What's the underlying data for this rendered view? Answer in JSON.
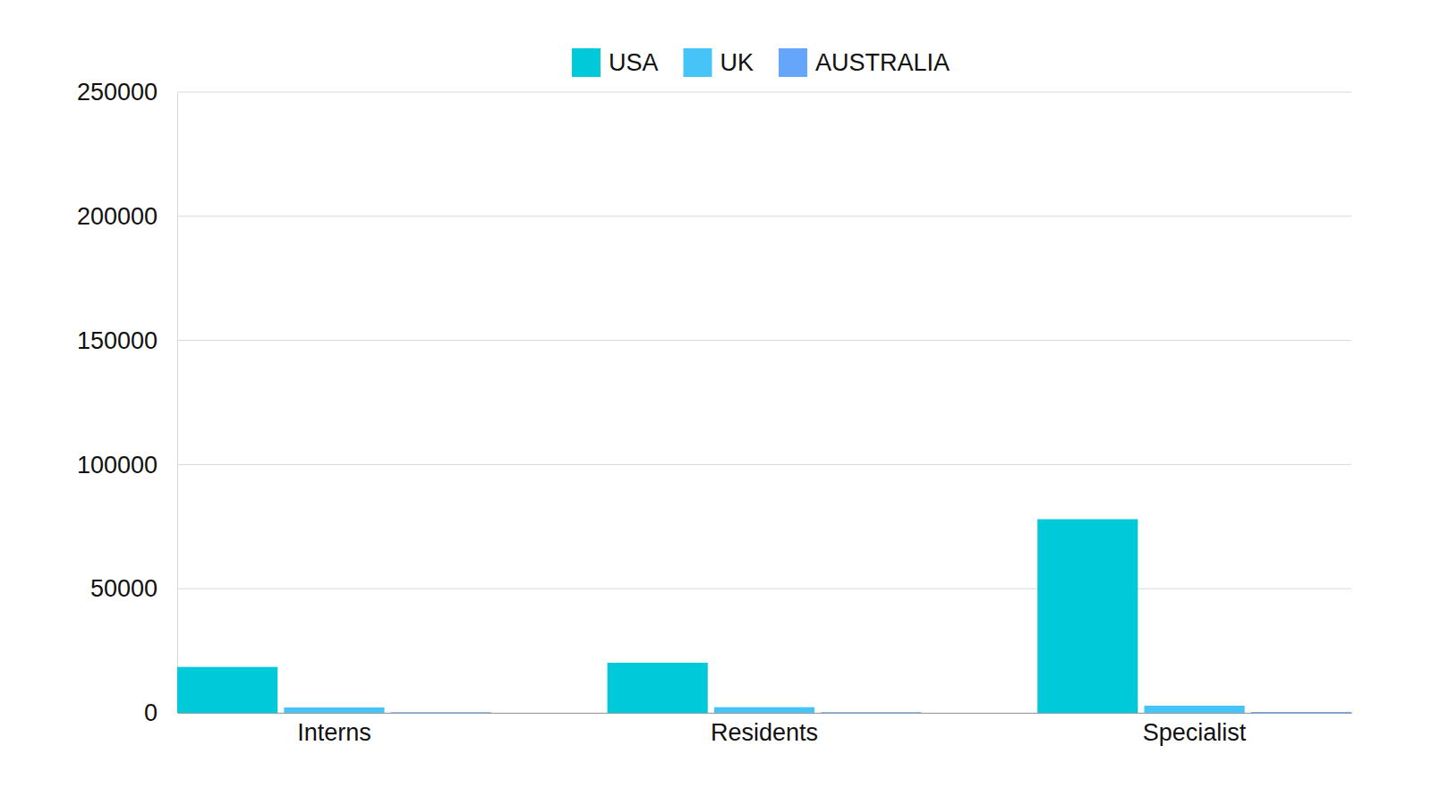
{
  "chart_data": {
    "type": "bar",
    "categories": [
      "Interns",
      "Residents",
      "Specialist"
    ],
    "series": [
      {
        "name": "USA",
        "color": "#00c9d9",
        "values": [
          18500,
          20200,
          78000
        ]
      },
      {
        "name": "UK",
        "color": "#47c4f7",
        "values": [
          2200,
          2300,
          2900
        ]
      },
      {
        "name": "AUSTRALIA",
        "color": "#66a6fa",
        "values": [
          250,
          280,
          350
        ]
      }
    ],
    "ylim": [
      0,
      250000
    ],
    "yticks": [
      0,
      50000,
      100000,
      150000,
      200000,
      250000
    ],
    "grid": true,
    "legend": "top"
  }
}
